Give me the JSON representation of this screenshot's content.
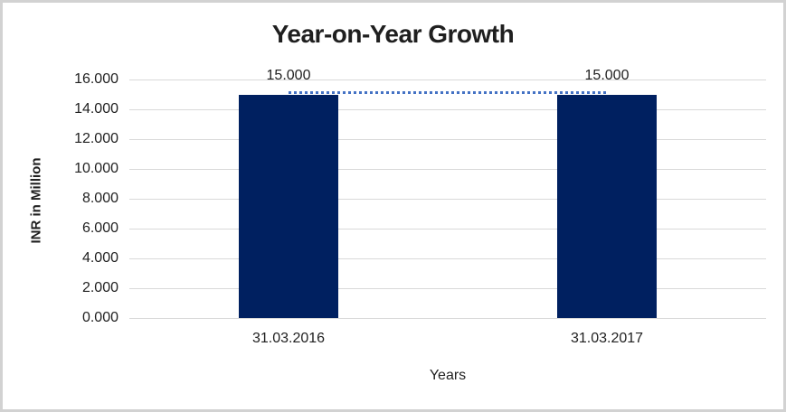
{
  "chart_data": {
    "type": "bar",
    "title": "Year-on-Year Growth",
    "xlabel": "Years",
    "ylabel": "INR in Million",
    "categories": [
      "31.03.2016",
      "31.03.2017"
    ],
    "series": [
      {
        "name": "INR in Million",
        "type": "bar",
        "values": [
          15.0,
          15.0
        ],
        "data_labels": [
          "15.000",
          "15.000"
        ],
        "color": "#002060"
      },
      {
        "name": "trend",
        "type": "line",
        "style": "dotted",
        "values": [
          15.0,
          15.0
        ],
        "color": "#4472C4"
      }
    ],
    "ylim": [
      0,
      16
    ],
    "ytick_step": 2,
    "yticks": [
      "16.000",
      "14.000",
      "12.000",
      "10.000",
      "8.000",
      "6.000",
      "4.000",
      "2.000",
      "0.000"
    ],
    "grid": true,
    "legend": "none",
    "colors": {
      "bar": "#002060",
      "trend_line": "#4472C4",
      "gridline": "#D9D9D9",
      "text": "#1F1F1F",
      "border": "#D2D2D2",
      "background": "#FFFFFF"
    }
  }
}
